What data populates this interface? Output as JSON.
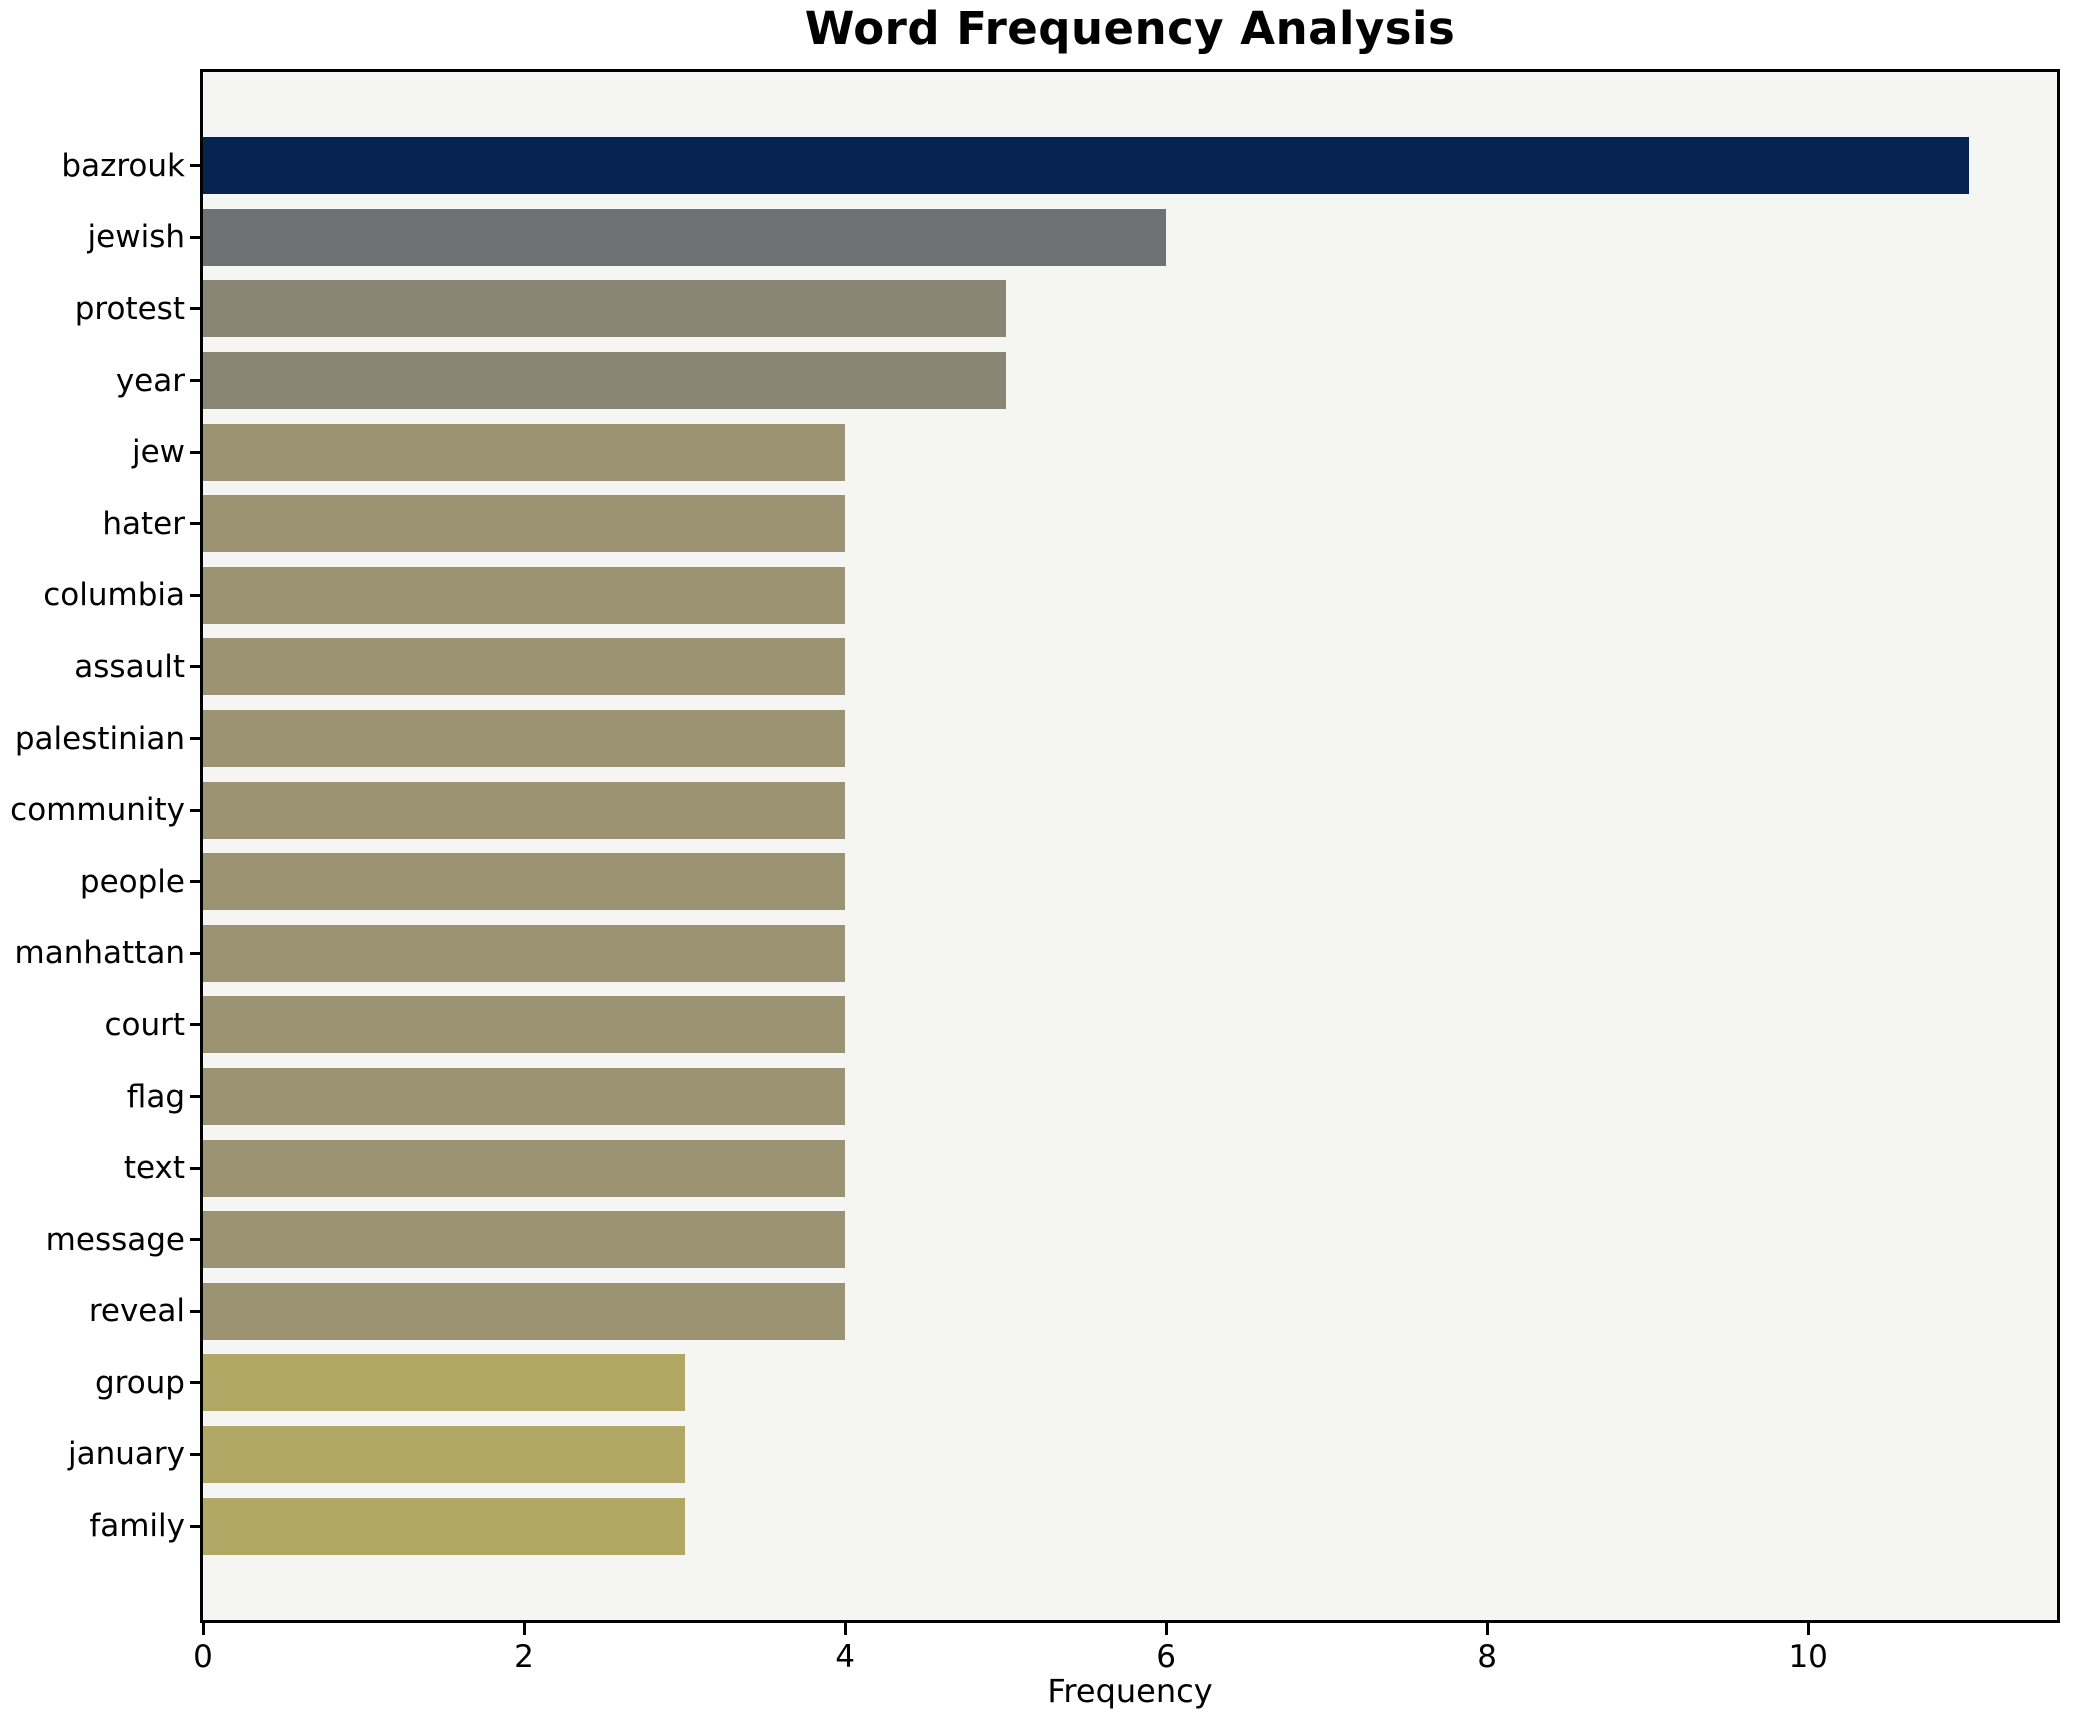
{
  "title": "Word Frequency Analysis",
  "chart_data": {
    "type": "bar",
    "orientation": "horizontal",
    "title": "Word Frequency Analysis",
    "xlabel": "Frequency",
    "ylabel": "",
    "categories": [
      "bazrouk",
      "jewish",
      "protest",
      "year",
      "jew",
      "hater",
      "columbia",
      "assault",
      "palestinian",
      "community",
      "people",
      "manhattan",
      "court",
      "flag",
      "text",
      "message",
      "reveal",
      "group",
      "january",
      "family"
    ],
    "values": [
      11,
      6,
      5,
      5,
      4,
      4,
      4,
      4,
      4,
      4,
      4,
      4,
      4,
      4,
      4,
      4,
      4,
      3,
      3,
      3
    ],
    "bar_colors": [
      "#062351",
      "#707173",
      "#8a8674",
      "#8a8674",
      "#9c9373",
      "#9c9373",
      "#9c9373",
      "#9c9373",
      "#9c9373",
      "#9c9373",
      "#9c9373",
      "#9c9373",
      "#9c9373",
      "#9c9373",
      "#9c9373",
      "#9c9373",
      "#9c9373",
      "#b2a866",
      "#b2a866",
      "#b2a866"
    ],
    "xlim": [
      0,
      11.55
    ],
    "xticks": [
      0,
      2,
      4,
      6,
      8,
      10
    ],
    "grid": false,
    "legend": null,
    "plot_background": "#f5f5f3",
    "figure_background": "#ffffff",
    "spine_color": "#000000"
  }
}
